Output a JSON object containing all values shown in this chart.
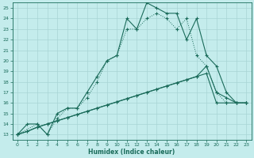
{
  "xlabel": "Humidex (Indice chaleur)",
  "xlim": [
    -0.5,
    23.5
  ],
  "ylim": [
    12.5,
    25.5
  ],
  "xticks": [
    0,
    1,
    2,
    3,
    4,
    5,
    6,
    7,
    8,
    9,
    10,
    11,
    12,
    13,
    14,
    15,
    16,
    17,
    18,
    19,
    20,
    21,
    22,
    23
  ],
  "yticks": [
    13,
    14,
    15,
    16,
    17,
    18,
    19,
    20,
    21,
    22,
    23,
    24,
    25
  ],
  "background_color": "#c4ecec",
  "line_color": "#1a6b5a",
  "grid_color": "#a8d4d4",
  "line1_x": [
    0,
    1,
    2,
    3,
    4,
    5,
    6,
    7,
    8,
    9,
    10,
    11,
    12,
    13,
    14,
    15,
    16,
    17,
    18,
    19,
    20,
    21,
    22,
    23
  ],
  "line1_y": [
    13,
    13.3,
    13.7,
    14,
    14.3,
    14.6,
    14.9,
    15.2,
    15.5,
    15.8,
    16.1,
    16.4,
    16.7,
    17,
    17.3,
    17.6,
    17.9,
    18.2,
    18.5,
    18.8,
    16,
    16,
    16,
    16
  ],
  "line2_x": [
    0,
    1,
    2,
    3,
    4,
    5,
    6,
    7,
    8,
    9,
    10,
    11,
    12,
    13,
    14,
    15,
    16,
    17,
    18,
    19,
    20,
    21,
    22,
    23
  ],
  "line2_y": [
    13,
    14,
    14,
    13,
    15,
    15.5,
    15.5,
    17,
    18.5,
    20,
    20.5,
    24,
    23,
    25.5,
    25,
    24.5,
    24.5,
    22,
    24,
    20.5,
    19.5,
    17,
    16,
    16
  ],
  "line3_x": [
    0,
    1,
    2,
    3,
    4,
    5,
    6,
    7,
    8,
    9,
    10,
    11,
    12,
    13,
    14,
    15,
    16,
    17,
    18,
    19,
    20,
    21,
    22,
    23
  ],
  "line3_y": [
    13,
    13.3,
    13.7,
    14,
    14.3,
    14.6,
    14.9,
    15.2,
    15.5,
    15.8,
    16.1,
    16.4,
    16.7,
    17,
    17.3,
    17.6,
    17.9,
    18.2,
    18.5,
    19.5,
    17,
    16.5,
    16,
    16
  ],
  "line4_x": [
    0,
    2,
    3,
    4,
    5,
    6,
    7,
    8,
    9,
    10,
    11,
    12,
    13,
    14,
    15,
    16,
    17,
    18,
    19,
    20,
    21,
    22,
    23
  ],
  "line4_y": [
    13,
    14,
    13,
    14.5,
    15.5,
    15.5,
    16.5,
    18,
    20,
    20.5,
    23,
    23,
    24,
    24.5,
    24,
    23,
    24,
    20.5,
    19.5,
    17,
    16,
    16,
    16
  ],
  "line4_dotted": true
}
